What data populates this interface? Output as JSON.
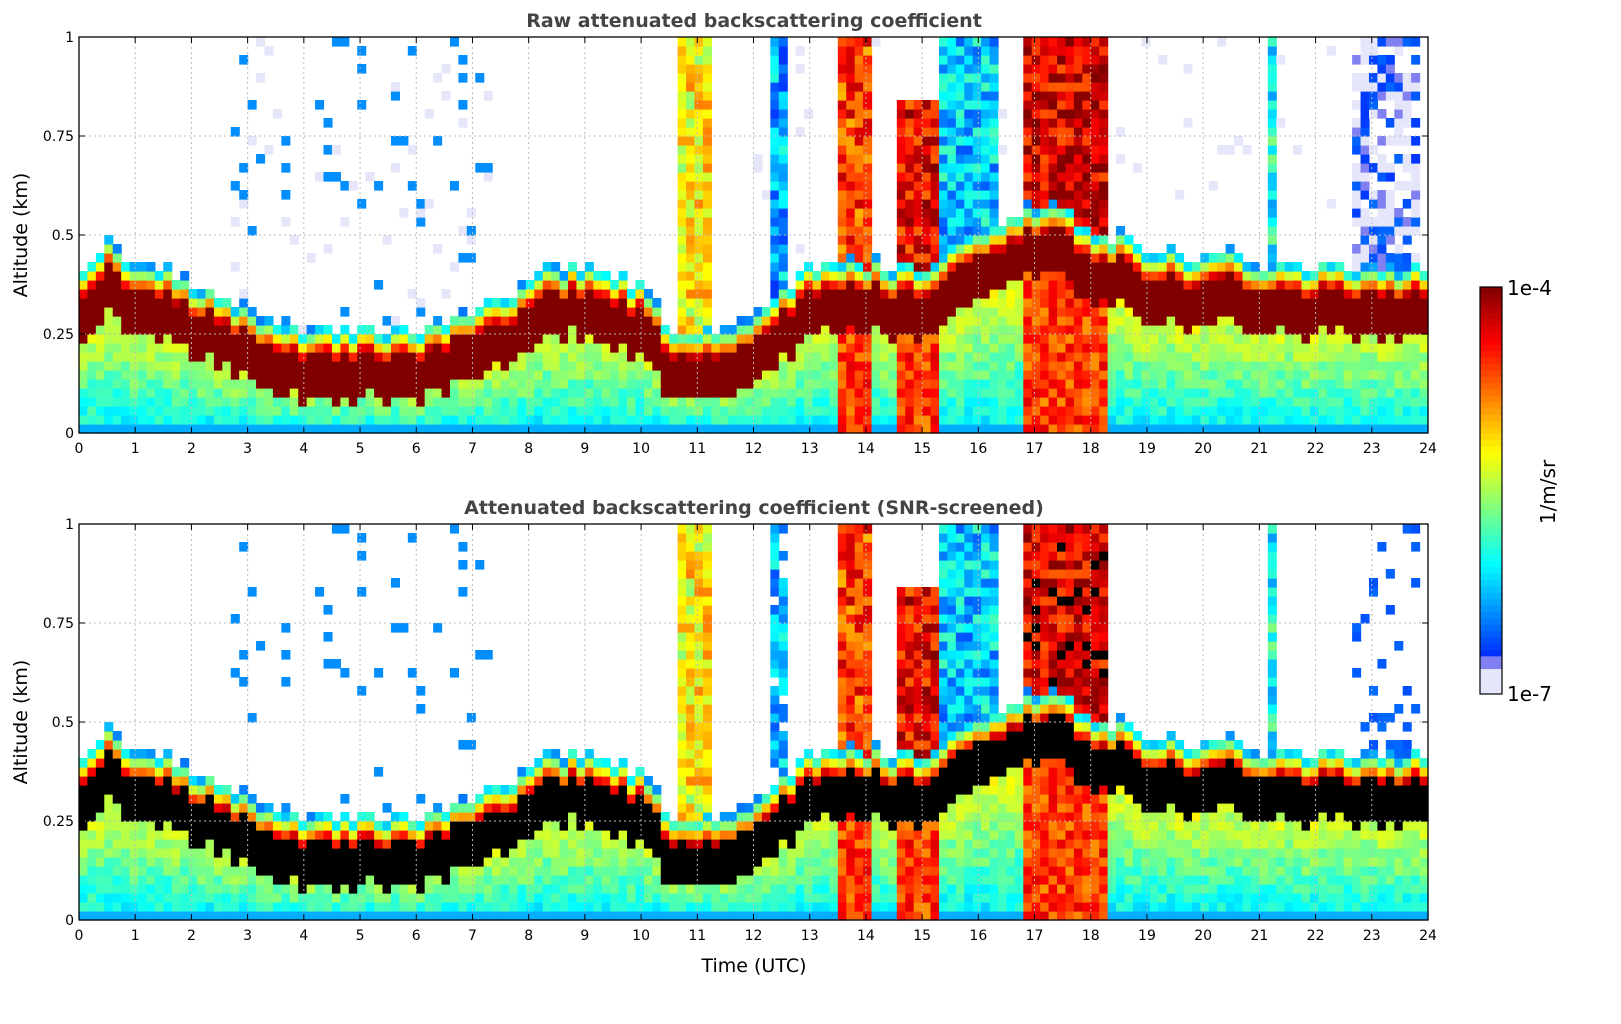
{
  "chart_data": [
    {
      "type": "heatmap",
      "title": "Raw attenuated backscattering coefficient",
      "xlabel": "",
      "ylabel": "Altitude (km)",
      "xlim": [
        0,
        24
      ],
      "ylim": [
        0,
        1
      ],
      "xticks": [
        "0",
        "1",
        "2",
        "3",
        "4",
        "5",
        "6",
        "7",
        "8",
        "9",
        "10",
        "11",
        "12",
        "13",
        "14",
        "15",
        "16",
        "17",
        "18",
        "19",
        "20",
        "21",
        "22",
        "23",
        "24"
      ],
      "yticks": [
        "0",
        "0.25",
        "0.5",
        "0.75",
        "1"
      ],
      "grid": true,
      "screened": false
    },
    {
      "type": "heatmap",
      "title": "Attenuated backscattering coefficient (SNR-screened)",
      "xlabel": "Time (UTC)",
      "ylabel": "Altitude (km)",
      "xlim": [
        0,
        24
      ],
      "ylim": [
        0,
        1
      ],
      "xticks": [
        "0",
        "1",
        "2",
        "3",
        "4",
        "5",
        "6",
        "7",
        "8",
        "9",
        "10",
        "11",
        "12",
        "13",
        "14",
        "15",
        "16",
        "17",
        "18",
        "19",
        "20",
        "21",
        "22",
        "23",
        "24"
      ],
      "yticks": [
        "0",
        "0.25",
        "0.5",
        "0.75",
        "1"
      ],
      "grid": true,
      "screened": true
    }
  ],
  "series": {
    "time_hours_step": 0.5,
    "layer_height_km": [
      0.3,
      0.36,
      0.31,
      0.3,
      0.26,
      0.22,
      0.19,
      0.17,
      0.14,
      0.14,
      0.15,
      0.13,
      0.14,
      0.16,
      0.18,
      0.22,
      0.27,
      0.3,
      0.3,
      0.28,
      0.25,
      0.16,
      0.12,
      0.15,
      0.19,
      0.24,
      0.3,
      0.31,
      0.32,
      0.3,
      0.3,
      0.34,
      0.4,
      0.42,
      0.46,
      0.45,
      0.4,
      0.38,
      0.35,
      0.33,
      0.33,
      0.33,
      0.32,
      0.3,
      0.3,
      0.3,
      0.3,
      0.3,
      0.3
    ],
    "cloud_events": [
      {
        "start": 10.6,
        "end": 11.2,
        "top_km": 1.0,
        "log_value": -5.2
      },
      {
        "start": 12.35,
        "end": 12.6,
        "top_km": 1.0,
        "log_value": -6.3
      },
      {
        "start": 13.55,
        "end": 14.1,
        "top_km": 1.0,
        "log_value": -4.6
      },
      {
        "start": 14.6,
        "end": 15.3,
        "top_km": 0.85,
        "log_value": -4.4
      },
      {
        "start": 15.3,
        "end": 16.4,
        "top_km": 1.0,
        "log_value": -6.2
      },
      {
        "start": 16.8,
        "end": 18.3,
        "top_km": 1.0,
        "log_value": -4.3
      },
      {
        "start": 21.1,
        "end": 21.35,
        "top_km": 1.0,
        "log_value": -6.0
      },
      {
        "start": 22.7,
        "end": 23.9,
        "top_km": 1.0,
        "log_value": -6.9
      }
    ],
    "noise_window": [
      2.7,
      7.3
    ]
  },
  "colorbar": {
    "label": "1/m/sr",
    "max_label": "1e-4",
    "min_label": "1e-7",
    "log_min": -7,
    "log_max": -4,
    "over_color_screened": "#000000",
    "low_color": "#e6e6fa"
  }
}
